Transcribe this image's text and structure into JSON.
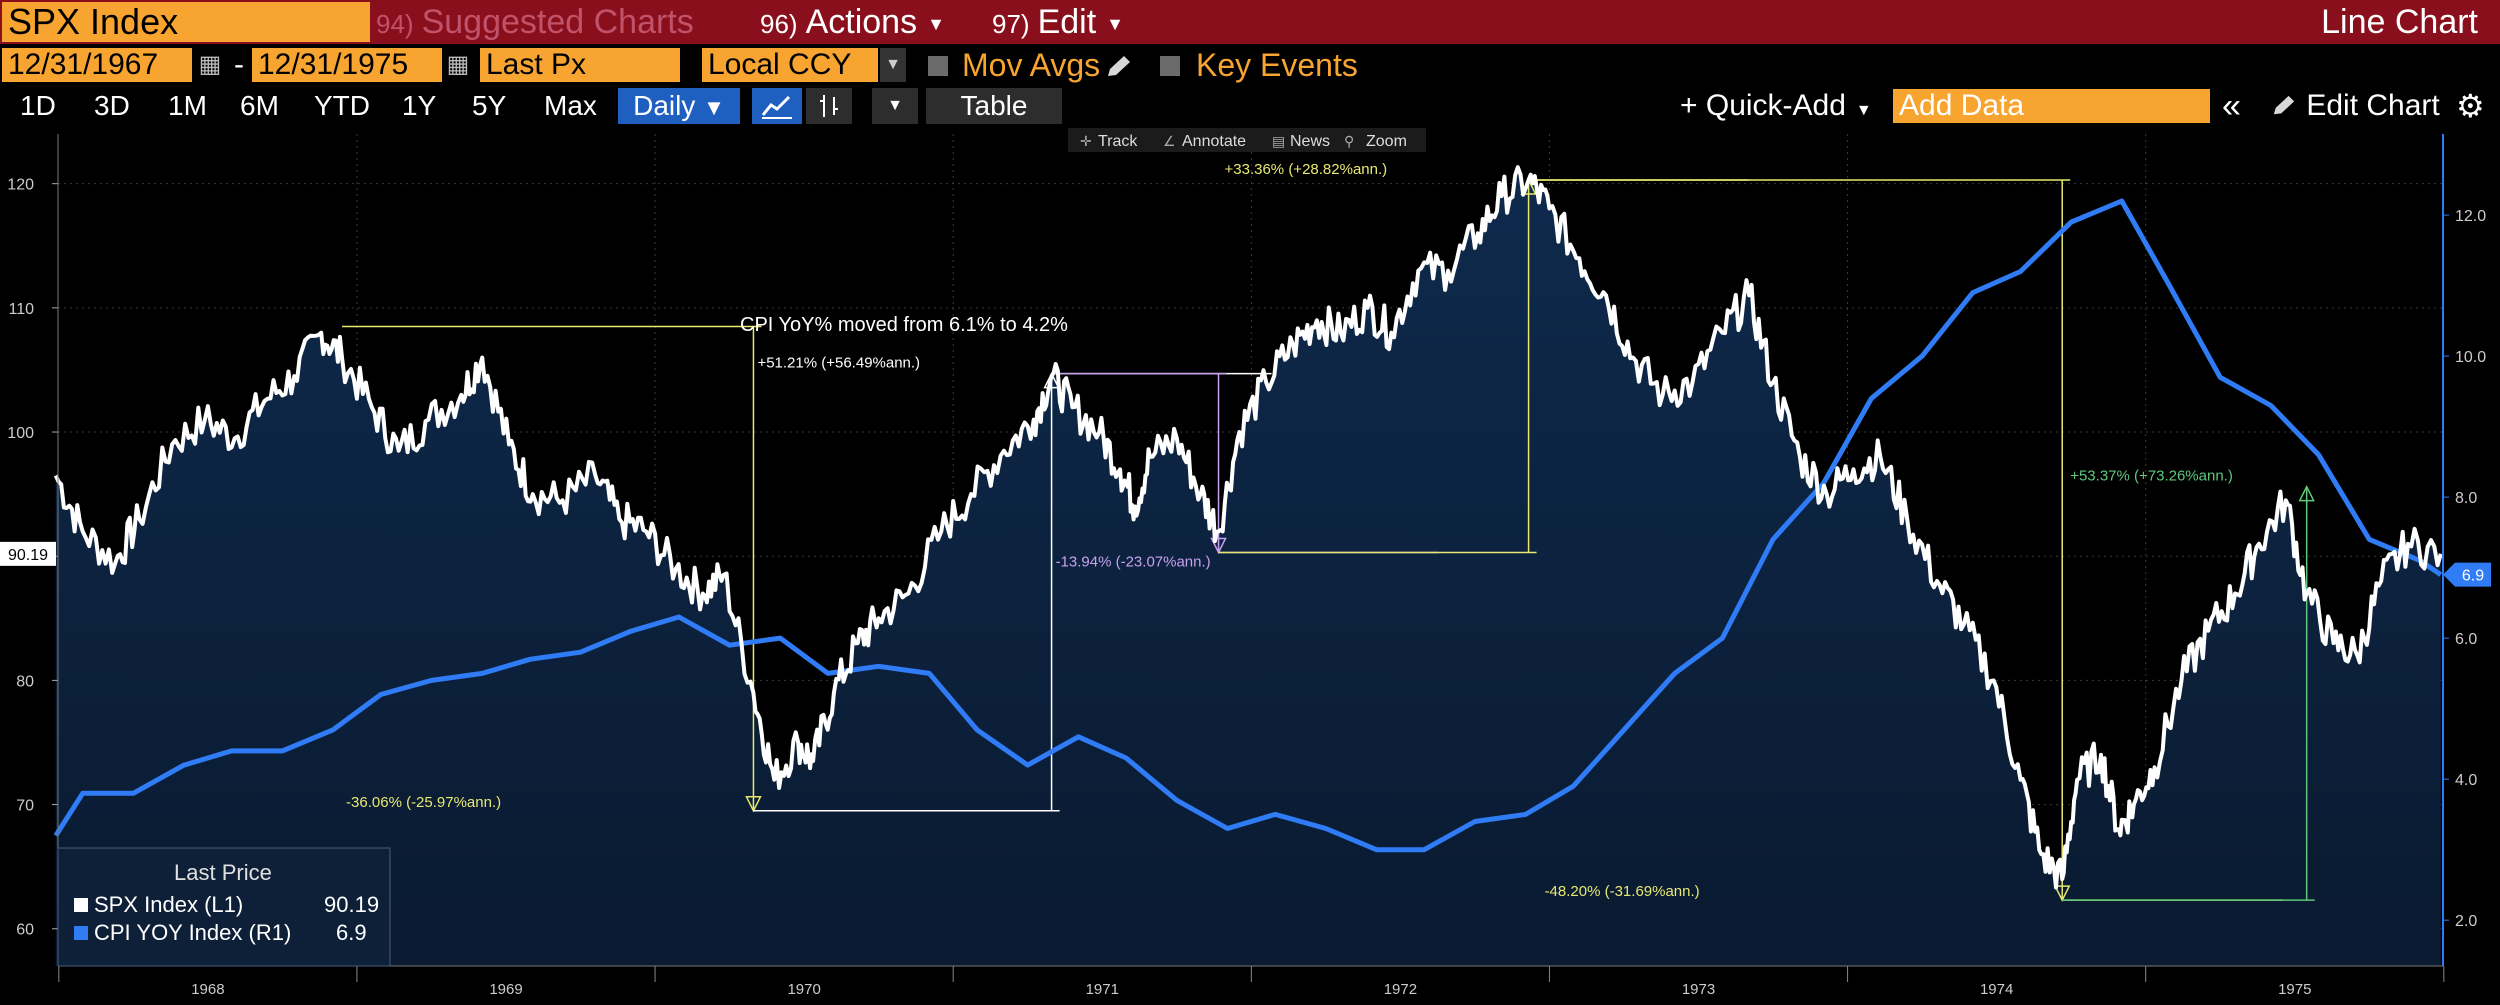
{
  "header": {
    "security": "SPX Index",
    "suggested_num": "94)",
    "suggested_label": "Suggested Charts",
    "actions_num": "96)",
    "actions_label": "Actions",
    "edit_num": "97)",
    "edit_label": "Edit",
    "chart_type": "Line Chart"
  },
  "settings": {
    "start_date": "12/31/1967",
    "end_date": "12/31/1975",
    "field": "Last Px",
    "currency": "Local CCY",
    "mov_avgs": "Mov Avgs",
    "key_events": "Key Events"
  },
  "toolbar": {
    "ranges": [
      "1D",
      "3D",
      "1M",
      "6M",
      "YTD",
      "1Y",
      "5Y",
      "Max"
    ],
    "frequency": "Daily",
    "table": "Table",
    "quick_add": "Quick-Add",
    "add_data_placeholder": "Add Data",
    "edit_chart": "Edit Chart"
  },
  "chart_tools": [
    "Track",
    "Annotate",
    "News",
    "Zoom"
  ],
  "legend": {
    "title": "Last Price",
    "items": [
      {
        "name": "SPX Index  (L1)",
        "value": "90.19",
        "color": "#ffffff"
      },
      {
        "name": "CPI YOY Index  (R1)",
        "value": "6.9",
        "color": "#2f7cf6"
      }
    ]
  },
  "colors": {
    "accent_orange": "#f7a430",
    "header_red": "#8a0f1c",
    "spx_line": "#ffffff",
    "cpi_line": "#2f7cf6",
    "area_fill": "#0b2340"
  },
  "chart_data": {
    "type": "line",
    "x_range": [
      "1967-12-31",
      "1975-12-31"
    ],
    "x_ticks": [
      "1968",
      "1969",
      "1970",
      "1971",
      "1972",
      "1973",
      "1974",
      "1975"
    ],
    "left_axis": {
      "ticks": [
        60,
        70,
        80,
        90,
        100,
        110,
        120
      ],
      "range": [
        57,
        124
      ]
    },
    "right_axis": {
      "ticks": [
        "2.0",
        "4.0",
        "6.0",
        "8.0",
        "10.0",
        "12.0"
      ],
      "range": [
        1.35,
        13.15
      ]
    },
    "last_labels": {
      "spx": "90.19",
      "cpi": "6.9"
    },
    "series": [
      {
        "name": "SPX Index",
        "values": [
          [
            1967.99,
            96.5
          ],
          [
            1968.08,
            92
          ],
          [
            1968.19,
            89.5
          ],
          [
            1968.27,
            93
          ],
          [
            1968.38,
            99
          ],
          [
            1968.49,
            101
          ],
          [
            1968.59,
            99.5
          ],
          [
            1968.69,
            102.5
          ],
          [
            1968.79,
            104.5
          ],
          [
            1968.88,
            108
          ],
          [
            1968.95,
            106
          ],
          [
            1969.05,
            102
          ],
          [
            1969.14,
            98.5
          ],
          [
            1969.24,
            101
          ],
          [
            1969.35,
            103
          ],
          [
            1969.42,
            106
          ],
          [
            1969.51,
            99
          ],
          [
            1969.59,
            95
          ],
          [
            1969.69,
            94.5
          ],
          [
            1969.8,
            96.5
          ],
          [
            1969.88,
            93
          ],
          [
            1969.97,
            92
          ],
          [
            1970.07,
            89
          ],
          [
            1970.16,
            87
          ],
          [
            1970.23,
            88.5
          ],
          [
            1970.33,
            79
          ],
          [
            1970.4,
            72
          ],
          [
            1970.48,
            75
          ],
          [
            1970.53,
            73.5
          ],
          [
            1970.6,
            79
          ],
          [
            1970.68,
            83
          ],
          [
            1970.75,
            85
          ],
          [
            1970.85,
            87
          ],
          [
            1970.96,
            92
          ],
          [
            1971.06,
            95
          ],
          [
            1971.17,
            98.5
          ],
          [
            1971.27,
            101
          ],
          [
            1971.33,
            104.5
          ],
          [
            1971.4,
            102
          ],
          [
            1971.49,
            100
          ],
          [
            1971.56,
            97
          ],
          [
            1971.61,
            94
          ],
          [
            1971.66,
            98
          ],
          [
            1971.75,
            99.5
          ],
          [
            1971.83,
            95
          ],
          [
            1971.89,
            92
          ],
          [
            1971.96,
            100
          ],
          [
            1972.05,
            104
          ],
          [
            1972.14,
            107
          ],
          [
            1972.22,
            109
          ],
          [
            1972.3,
            108
          ],
          [
            1972.39,
            110
          ],
          [
            1972.47,
            108
          ],
          [
            1972.56,
            113
          ],
          [
            1972.66,
            113
          ],
          [
            1972.76,
            116
          ],
          [
            1972.84,
            119
          ],
          [
            1972.93,
            120.3
          ],
          [
            1973.0,
            118
          ],
          [
            1973.1,
            114
          ],
          [
            1973.19,
            111
          ],
          [
            1973.28,
            106
          ],
          [
            1973.38,
            103
          ],
          [
            1973.48,
            104
          ],
          [
            1973.58,
            108
          ],
          [
            1973.67,
            111
          ],
          [
            1973.75,
            104
          ],
          [
            1973.84,
            98
          ],
          [
            1973.93,
            95
          ],
          [
            1974.02,
            97
          ],
          [
            1974.11,
            98
          ],
          [
            1974.2,
            93
          ],
          [
            1974.3,
            88
          ],
          [
            1974.39,
            84.5
          ],
          [
            1974.49,
            80
          ],
          [
            1974.58,
            72
          ],
          [
            1974.65,
            66
          ],
          [
            1974.72,
            64
          ],
          [
            1974.77,
            72
          ],
          [
            1974.85,
            74
          ],
          [
            1974.91,
            68
          ],
          [
            1974.96,
            70
          ],
          [
            1975.03,
            73
          ],
          [
            1975.12,
            80
          ],
          [
            1975.21,
            84
          ],
          [
            1975.3,
            87
          ],
          [
            1975.38,
            91
          ],
          [
            1975.47,
            94.5
          ],
          [
            1975.54,
            87
          ],
          [
            1975.63,
            83
          ],
          [
            1975.71,
            82
          ],
          [
            1975.79,
            88
          ],
          [
            1975.88,
            91
          ],
          [
            1975.99,
            90.19
          ]
        ]
      },
      {
        "name": "CPI YOY Index",
        "values": [
          [
            1967.99,
            3.2
          ],
          [
            1968.08,
            3.8
          ],
          [
            1968.25,
            3.8
          ],
          [
            1968.42,
            4.2
          ],
          [
            1968.58,
            4.4
          ],
          [
            1968.75,
            4.4
          ],
          [
            1968.92,
            4.7
          ],
          [
            1969.08,
            5.2
          ],
          [
            1969.25,
            5.4
          ],
          [
            1969.42,
            5.5
          ],
          [
            1969.58,
            5.7
          ],
          [
            1969.75,
            5.8
          ],
          [
            1969.92,
            6.1
          ],
          [
            1970.08,
            6.3
          ],
          [
            1970.25,
            5.9
          ],
          [
            1970.42,
            6.0
          ],
          [
            1970.58,
            5.5
          ],
          [
            1970.75,
            5.6
          ],
          [
            1970.92,
            5.5
          ],
          [
            1971.08,
            4.7
          ],
          [
            1971.25,
            4.2
          ],
          [
            1971.42,
            4.6
          ],
          [
            1971.58,
            4.3
          ],
          [
            1971.75,
            3.7
          ],
          [
            1971.92,
            3.3
          ],
          [
            1972.08,
            3.5
          ],
          [
            1972.25,
            3.3
          ],
          [
            1972.42,
            3.0
          ],
          [
            1972.58,
            3.0
          ],
          [
            1972.75,
            3.4
          ],
          [
            1972.92,
            3.5
          ],
          [
            1973.08,
            3.9
          ],
          [
            1973.25,
            4.7
          ],
          [
            1973.42,
            5.5
          ],
          [
            1973.58,
            6.0
          ],
          [
            1973.75,
            7.4
          ],
          [
            1973.92,
            8.2
          ],
          [
            1974.08,
            9.4
          ],
          [
            1974.25,
            10.0
          ],
          [
            1974.42,
            10.9
          ],
          [
            1974.58,
            11.2
          ],
          [
            1974.75,
            11.9
          ],
          [
            1974.92,
            12.2
          ],
          [
            1975.08,
            11.0
          ],
          [
            1975.25,
            9.7
          ],
          [
            1975.42,
            9.3
          ],
          [
            1975.58,
            8.6
          ],
          [
            1975.75,
            7.4
          ],
          [
            1975.92,
            7.1
          ],
          [
            1975.99,
            6.9
          ]
        ]
      }
    ],
    "annotations": [
      {
        "text": "-36.06% (-25.97%ann.)",
        "color": "#e8e870",
        "x1": 1968.95,
        "y1": 108.5,
        "x2": 1970.33,
        "y2": 69.5
      },
      {
        "text": "CPI YoY% moved from 6.1% to 4.2%",
        "color": "#ffffff"
      },
      {
        "text": "+51.21% (+56.49%ann.)",
        "color": "#ffffff",
        "x1": 1970.33,
        "y1": 69.5,
        "x2": 1971.33,
        "y2": 104.7
      },
      {
        "text": "-13.94% (-23.07%ann.)",
        "color": "#c8a0f0",
        "x1": 1971.33,
        "y1": 104.7,
        "x2": 1971.89,
        "y2": 90.3
      },
      {
        "text": "+33.36% (+28.82%ann.)",
        "color": "#e8e870",
        "x1": 1971.89,
        "y1": 90.3,
        "x2": 1972.93,
        "y2": 120.3
      },
      {
        "text": "-48.20% (-31.69%ann.)",
        "color": "#e8e870",
        "x1": 1972.93,
        "y1": 120.3,
        "x2": 1974.72,
        "y2": 62.3
      },
      {
        "text": "+53.37% (+73.26%ann.)",
        "color": "#5fc87a",
        "x1": 1974.72,
        "y1": 62.3,
        "x2": 1975.54,
        "y2": 95.6
      }
    ]
  }
}
